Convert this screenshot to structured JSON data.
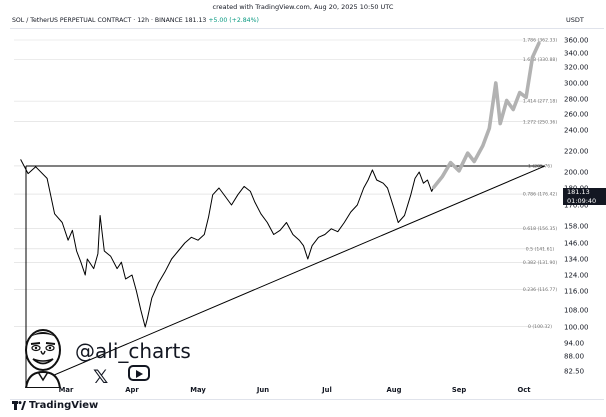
{
  "header": {
    "created": "created with TradingView.com, Aug 20, 2025 10:50 UTC",
    "symbol": "SOL / TetherUS PERPETUAL CONTRACT · 12h · BINANCE",
    "price": "181.13",
    "change": "+5.00 (+2.84%)",
    "currency": "USDT"
  },
  "price_tag": {
    "price": "181.13",
    "countdown": "01:09:40"
  },
  "watermark": {
    "handle": "@ali_charts"
  },
  "footer": {
    "logo": "TradingView"
  },
  "icons": {
    "x": "x-logo-icon",
    "youtube": "youtube-icon",
    "avatar": "cartoon-avatar-icon"
  },
  "colors": {
    "line": "#000000",
    "projection": "#b2b2b2",
    "grid": "#d9d9d9"
  },
  "chart_data": {
    "type": "line",
    "y_ticks": [
      360,
      340,
      320,
      300,
      280,
      260,
      240,
      220,
      200,
      180,
      170,
      158,
      146,
      134,
      124,
      116,
      108,
      100,
      94,
      88,
      82.5
    ],
    "y_tick_labels": [
      "360.00",
      "340.00",
      "320.00",
      "300.00",
      "280.00",
      "260.00",
      "240.00",
      "220.00",
      "200.00",
      "180.00",
      "170.00",
      "158.00",
      "146.00",
      "134.00",
      "124.00",
      "116.00",
      "108.00",
      "100.00",
      "94.00",
      "88.00",
      "82.50"
    ],
    "x_ticks": [
      "Mar",
      "Apr",
      "May",
      "Jun",
      "Jul",
      "Aug",
      "Sep",
      "Oct"
    ],
    "fib_levels": [
      {
        "ratio": "1.786",
        "value": 362.33,
        "label": "1.786 (362.33)"
      },
      {
        "ratio": "1.618",
        "value": 330.88,
        "label": "1.618 (330.88)"
      },
      {
        "ratio": "1.414",
        "value": 277.18,
        "label": "1.414 (277.18)"
      },
      {
        "ratio": "1.272",
        "value": 250.36,
        "label": "1.272 (250.36)"
      },
      {
        "ratio": "1",
        "value": 205.76,
        "label": "1 (205.76)"
      },
      {
        "ratio": "0.786",
        "value": 176.42,
        "label": "0.786 (176.42)"
      },
      {
        "ratio": "0.618",
        "value": 156.35,
        "label": "0.618 (156.35)"
      },
      {
        "ratio": "0.5",
        "value": 141.61,
        "label": "0.5 (141.61)"
      },
      {
        "ratio": "0.382",
        "value": 131.9,
        "label": "0.382 (131.90)"
      },
      {
        "ratio": "0.236",
        "value": 116.77,
        "label": "0.236 (116.77)"
      },
      {
        "ratio": "0",
        "value": 100.32,
        "label": "0 (100.32)"
      }
    ],
    "series": [
      {
        "values": [
          [
            "Feb 17",
            212
          ],
          [
            "Feb 19",
            198
          ],
          [
            "Feb 21",
            205
          ],
          [
            "Feb 24",
            192
          ],
          [
            "Feb 26",
            165
          ],
          [
            "Feb 28",
            160
          ],
          [
            "Mar 2",
            148
          ],
          [
            "Mar 4",
            155
          ],
          [
            "Mar 6",
            140
          ],
          [
            "Mar 8",
            132
          ],
          [
            "Mar 10",
            124
          ],
          [
            "Mar 11",
            134
          ],
          [
            "Mar 14",
            128
          ],
          [
            "Mar 16",
            138
          ],
          [
            "Mar 17",
            164
          ],
          [
            "Mar 19",
            140
          ],
          [
            "Mar 22",
            136
          ],
          [
            "Mar 25",
            128
          ],
          [
            "Mar 27",
            132
          ],
          [
            "Mar 29",
            122
          ],
          [
            "Apr 1",
            124
          ],
          [
            "Apr 3",
            116
          ],
          [
            "Apr 5",
            108
          ],
          [
            "Apr 7",
            100
          ],
          [
            "Apr 8",
            104
          ],
          [
            "Apr 10",
            113
          ],
          [
            "Apr 13",
            120
          ],
          [
            "Apr 16",
            126
          ],
          [
            "Apr 19",
            134
          ],
          [
            "Apr 22",
            140
          ],
          [
            "Apr 25",
            146
          ],
          [
            "Apr 28",
            150
          ],
          [
            "May 1",
            148
          ],
          [
            "May 4",
            152
          ],
          [
            "May 6",
            163
          ],
          [
            "May 8",
            176
          ],
          [
            "May 11",
            180
          ],
          [
            "May 14",
            175
          ],
          [
            "May 17",
            170
          ],
          [
            "May 20",
            176
          ],
          [
            "May 23",
            182
          ],
          [
            "May 26",
            178
          ],
          [
            "May 28",
            172
          ],
          [
            "May 31",
            165
          ],
          [
            "Jun 3",
            160
          ],
          [
            "Jun 6",
            152
          ],
          [
            "Jun 9",
            155
          ],
          [
            "Jun 12",
            160
          ],
          [
            "Jun 15",
            152
          ],
          [
            "Jun 18",
            148
          ],
          [
            "Jun 20",
            144
          ],
          [
            "Jun 22",
            134
          ],
          [
            "Jun 24",
            144
          ],
          [
            "Jun 27",
            150
          ],
          [
            "Jun 30",
            152
          ],
          [
            "Jul 3",
            156
          ],
          [
            "Jul 6",
            154
          ],
          [
            "Jul 9",
            160
          ],
          [
            "Jul 12",
            166
          ],
          [
            "Jul 15",
            170
          ],
          [
            "Jul 18",
            180
          ],
          [
            "Jul 20",
            190
          ],
          [
            "Jul 22",
            202
          ],
          [
            "Jul 24",
            190
          ],
          [
            "Jul 27",
            186
          ],
          [
            "Jul 29",
            180
          ],
          [
            "Aug 1",
            168
          ],
          [
            "Aug 3",
            160
          ],
          [
            "Aug 6",
            164
          ],
          [
            "Aug 9",
            176
          ],
          [
            "Aug 11",
            192
          ],
          [
            "Aug 13",
            200
          ],
          [
            "Aug 15",
            186
          ],
          [
            "Aug 17",
            190
          ],
          [
            "Aug 19",
            178
          ],
          [
            "Aug 20",
            181.13
          ]
        ]
      },
      {
        "values": [
          [
            "Aug 20",
            181
          ],
          [
            "Aug 24",
            194
          ],
          [
            "Aug 28",
            209
          ],
          [
            "Sep 1",
            201
          ],
          [
            "Sep 5",
            218
          ],
          [
            "Sep 8",
            210
          ],
          [
            "Sep 12",
            225
          ],
          [
            "Sep 15",
            242
          ],
          [
            "Sep 18",
            300
          ],
          [
            "Sep 20",
            248
          ],
          [
            "Sep 23",
            278
          ],
          [
            "Sep 26",
            266
          ],
          [
            "Sep 29",
            288
          ],
          [
            "Oct 2",
            282
          ],
          [
            "Oct 5",
            334
          ],
          [
            "Oct 8",
            355
          ]
        ]
      }
    ]
  }
}
